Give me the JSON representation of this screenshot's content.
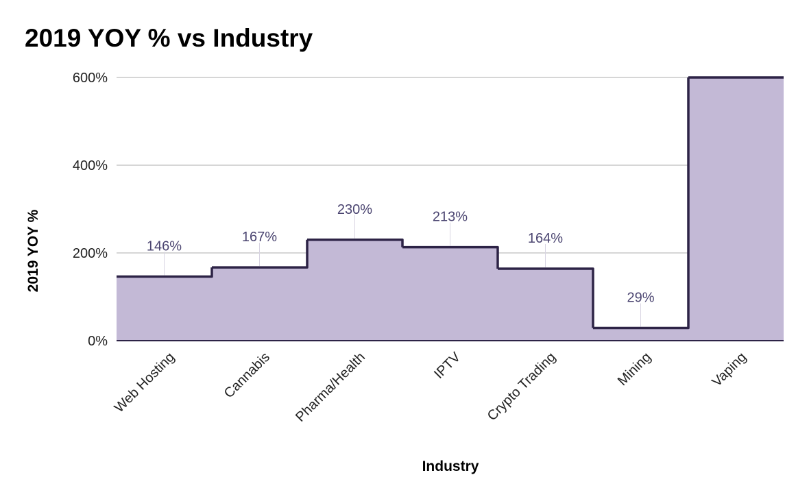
{
  "chart_data": {
    "type": "area",
    "title": "2019 YOY % vs Industry",
    "xlabel": "Industry",
    "ylabel": "2019 YOY %",
    "categories": [
      "Web Hosting",
      "Cannabis",
      "Pharma/Health",
      "IPTV",
      "Crypto Trading",
      "Mining",
      "Vaping"
    ],
    "values": [
      146,
      167,
      230,
      213,
      164,
      29,
      600
    ],
    "data_labels": [
      "146%",
      "167%",
      "230%",
      "213%",
      "164%",
      "29%",
      ""
    ],
    "ylim": [
      0,
      600
    ],
    "yticks": [
      0,
      200,
      400,
      600
    ],
    "ytick_labels": [
      "0%",
      "200%",
      "400%",
      "600%"
    ],
    "grid": true,
    "legend": "none",
    "colors": {
      "fill": "#c3b9d6",
      "line": "#2d2346",
      "grid": "#bdbdbd",
      "label": "#4a4470"
    }
  }
}
